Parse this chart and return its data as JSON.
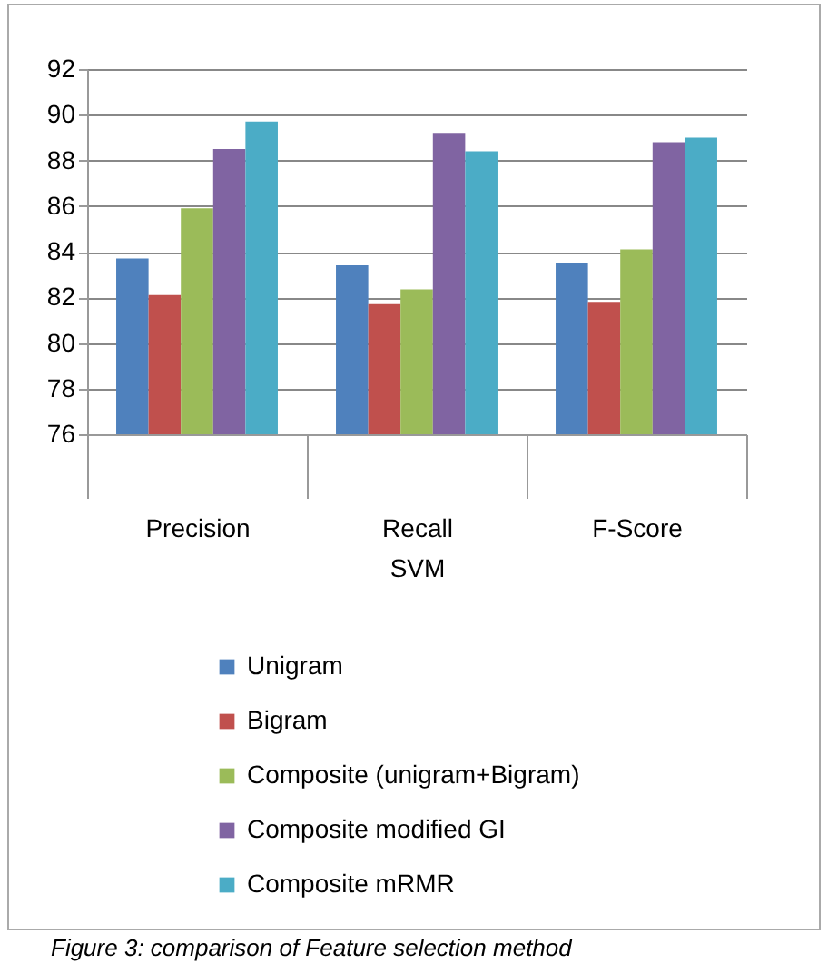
{
  "chart_data": {
    "type": "bar",
    "xlabel": "SVM",
    "categories": [
      "Precision",
      "Recall",
      "F-Score"
    ],
    "series": [
      {
        "name": "Unigram",
        "color": "#4f81bd",
        "values": [
          83.7,
          83.4,
          83.5
        ]
      },
      {
        "name": "Bigram",
        "color": "#c0504d",
        "values": [
          82.1,
          81.7,
          81.8
        ]
      },
      {
        "name": "Composite (unigram+Bigram)",
        "color": "#9bbb59",
        "values": [
          85.9,
          82.35,
          84.1
        ]
      },
      {
        "name": "Composite modified GI",
        "color": "#8064a2",
        "values": [
          88.5,
          89.2,
          88.8
        ]
      },
      {
        "name": "Composite mRMR",
        "color": "#4bacc6",
        "values": [
          89.7,
          88.4,
          89.0
        ]
      }
    ],
    "ylim": [
      76,
      92
    ],
    "yticks": [
      76,
      78,
      80,
      82,
      84,
      86,
      88,
      90,
      92
    ],
    "grid": "y",
    "legend": "bottom",
    "annotations": [
      "Figure 3: comparison of Feature selection method"
    ]
  }
}
